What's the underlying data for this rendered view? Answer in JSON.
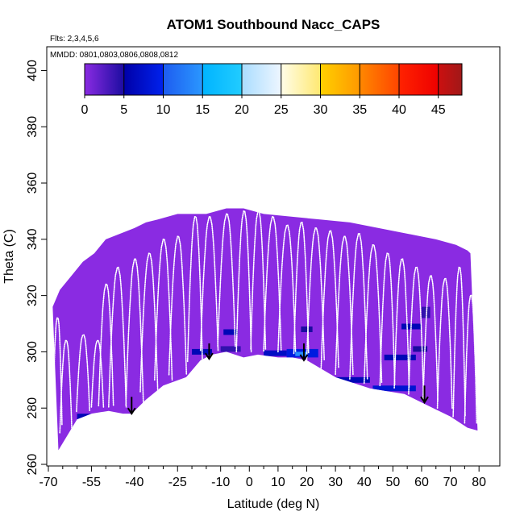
{
  "chart_data": {
    "type": "heatmap",
    "title": "ATOM1 Southbound Nacc_CAPS",
    "annotations": [
      "Flts: 2,3,4,5,6",
      "MMDD: 0801,0803,0806,0808,0812"
    ],
    "xlabel": "Latitude (deg N)",
    "ylabel": "Theta (C)",
    "xlim": [
      -70,
      85
    ],
    "ylim": [
      260,
      405
    ],
    "x_major_ticks": [
      -70,
      -55,
      -40,
      -25,
      -10,
      0,
      10,
      20,
      30,
      40,
      50,
      60,
      70,
      80
    ],
    "x_tick_labels": [
      "-70",
      "-55",
      "-40",
      "-25",
      "-10",
      "0",
      "10",
      "20",
      "30",
      "40",
      "50",
      "60",
      "70",
      "80"
    ],
    "x_minor_ticks": [
      -65,
      -60,
      -50,
      -45,
      -35,
      -30,
      -20,
      -15,
      -5,
      5,
      15,
      25,
      35,
      45,
      55,
      65,
      75
    ],
    "y_ticks": [
      260,
      280,
      300,
      320,
      340,
      360,
      380,
      400
    ],
    "y_tick_labels": [
      "260",
      "280",
      "300",
      "320",
      "340",
      "360",
      "380",
      "400"
    ],
    "colorbar": {
      "range": [
        0,
        48
      ],
      "tick_values": [
        0,
        5,
        10,
        15,
        20,
        25,
        30,
        35,
        40,
        45
      ],
      "tick_labels": [
        "0",
        "5",
        "10",
        "15",
        "20",
        "25",
        "30",
        "35",
        "40",
        "45"
      ],
      "segments": [
        {
          "from": 0,
          "to": 5,
          "c0": "#8a2be2",
          "c1": "#1b0ca0"
        },
        {
          "from": 5,
          "to": 10,
          "c0": "#0000a8",
          "c1": "#0022ee"
        },
        {
          "from": 10,
          "to": 15,
          "c0": "#1e5cf0",
          "c1": "#2a98ff"
        },
        {
          "from": 15,
          "to": 20,
          "c0": "#00b4ff",
          "c1": "#22ccff"
        },
        {
          "from": 20,
          "to": 25,
          "c0": "#aaddff",
          "c1": "#eef6ff"
        },
        {
          "from": 25,
          "to": 30,
          "c0": "#fffde8",
          "c1": "#ffe870"
        },
        {
          "from": 30,
          "to": 35,
          "c0": "#ffd000",
          "c1": "#ff9800"
        },
        {
          "from": 35,
          "to": 40,
          "c0": "#ff8800",
          "c1": "#ff4400"
        },
        {
          "from": 40,
          "to": 45,
          "c0": "#ff2200",
          "c1": "#ee0000"
        },
        {
          "from": 45,
          "to": 48,
          "c0": "#cc1010",
          "c1": "#a01818"
        }
      ]
    },
    "field_color": "#8a2be2",
    "profile_color": "#ffffff",
    "domain_top": [
      [
        -68.5,
        316
      ],
      [
        -66,
        322
      ],
      [
        -62,
        327
      ],
      [
        -58,
        332
      ],
      [
        -54,
        335
      ],
      [
        -50,
        340
      ],
      [
        -45,
        342
      ],
      [
        -40,
        344
      ],
      [
        -36,
        346
      ],
      [
        -32,
        347
      ],
      [
        -25,
        349
      ],
      [
        -15,
        349
      ],
      [
        -8,
        351
      ],
      [
        -2,
        351
      ],
      [
        5,
        349
      ],
      [
        15,
        348
      ],
      [
        25,
        347
      ],
      [
        35,
        346
      ],
      [
        45,
        344
      ],
      [
        55,
        342
      ],
      [
        60,
        341
      ],
      [
        65,
        340
      ],
      [
        72,
        338
      ],
      [
        76,
        336
      ],
      [
        77,
        335
      ]
    ],
    "domain_right_bottom": [
      79.5,
      272
    ],
    "lower_boundary": [
      [
        -66.5,
        265
      ],
      [
        -60,
        276
      ],
      [
        -55,
        278
      ],
      [
        -49,
        279
      ],
      [
        -44,
        278
      ],
      [
        -41,
        278
      ],
      [
        -36,
        283
      ],
      [
        -30,
        288
      ],
      [
        -22,
        291
      ],
      [
        -17,
        297
      ],
      [
        -13,
        299
      ],
      [
        -8,
        300
      ],
      [
        -2,
        298
      ],
      [
        3,
        299
      ],
      [
        10,
        298
      ],
      [
        15,
        298
      ],
      [
        20,
        297
      ],
      [
        25,
        294
      ],
      [
        30,
        291
      ],
      [
        36,
        289
      ],
      [
        42,
        287
      ],
      [
        48,
        286
      ],
      [
        54,
        285
      ],
      [
        58,
        283
      ],
      [
        64,
        280
      ],
      [
        70,
        277
      ],
      [
        76,
        273
      ],
      [
        79.5,
        272
      ]
    ],
    "enhanced_regions": [
      {
        "x": [
          -60,
          -50
        ],
        "y": [
          276,
          278
        ],
        "value": 6
      },
      {
        "x": [
          -20,
          -13
        ],
        "y": [
          299,
          301
        ],
        "value": 6
      },
      {
        "x": [
          -10,
          -3
        ],
        "y": [
          300,
          302
        ],
        "value": 4
      },
      {
        "x": [
          -9,
          -4
        ],
        "y": [
          306,
          308
        ],
        "value": 6
      },
      {
        "x": [
          5,
          13
        ],
        "y": [
          298.5,
          300.5
        ],
        "value": 7
      },
      {
        "x": [
          13,
          24
        ],
        "y": [
          298,
          301
        ],
        "value": 9
      },
      {
        "x": [
          16,
          20
        ],
        "y": [
          298.5,
          300
        ],
        "value": 14
      },
      {
        "x": [
          18,
          22
        ],
        "y": [
          307,
          309
        ],
        "value": 5
      },
      {
        "x": [
          30,
          42
        ],
        "y": [
          289,
          291
        ],
        "value": 6
      },
      {
        "x": [
          43,
          58
        ],
        "y": [
          286,
          288
        ],
        "value": 8
      },
      {
        "x": [
          47,
          58
        ],
        "y": [
          297,
          299
        ],
        "value": 6
      },
      {
        "x": [
          53,
          60
        ],
        "y": [
          308,
          310
        ],
        "value": 6
      },
      {
        "x": [
          57,
          62
        ],
        "y": [
          300,
          302
        ],
        "value": 5
      },
      {
        "x": [
          60,
          63
        ],
        "y": [
          312,
          316
        ],
        "value": 4
      }
    ],
    "arrows": [
      {
        "x": -41,
        "y_from": 284,
        "y_to": 278
      },
      {
        "x": -14,
        "y_from": 303,
        "y_to": 297.5
      },
      {
        "x": 19,
        "y_from": 303,
        "y_to": 297
      },
      {
        "x": 61,
        "y_from": 288,
        "y_to": 282
      }
    ],
    "profiles": [
      {
        "x": -67,
        "peak": 312,
        "w": 1.5
      },
      {
        "x": -64,
        "peak": 304,
        "w": 2.0
      },
      {
        "x": -58,
        "peak": 306,
        "w": 2.2
      },
      {
        "x": -53,
        "peak": 304,
        "w": 2.0
      },
      {
        "x": -50,
        "peak": 324,
        "w": 2.5
      },
      {
        "x": -46,
        "peak": 330,
        "w": 3.0
      },
      {
        "x": -40,
        "peak": 333,
        "w": 3.0
      },
      {
        "x": -35,
        "peak": 335,
        "w": 3.0
      },
      {
        "x": -30,
        "peak": 340,
        "w": 3.0
      },
      {
        "x": -25,
        "peak": 341,
        "w": 3.0
      },
      {
        "x": -19,
        "peak": 348,
        "w": 2.5
      },
      {
        "x": -14,
        "peak": 348,
        "w": 3.0
      },
      {
        "x": -8,
        "peak": 349,
        "w": 3.0
      },
      {
        "x": -2,
        "peak": 350,
        "w": 2.5
      },
      {
        "x": 3,
        "peak": 350,
        "w": 2.5
      },
      {
        "x": 8,
        "peak": 348,
        "w": 3.0
      },
      {
        "x": 13,
        "peak": 345,
        "w": 3.0
      },
      {
        "x": 18,
        "peak": 346,
        "w": 2.5
      },
      {
        "x": 23,
        "peak": 344,
        "w": 3.0
      },
      {
        "x": 28,
        "peak": 343,
        "w": 3.0
      },
      {
        "x": 33,
        "peak": 341,
        "w": 3.0
      },
      {
        "x": 38,
        "peak": 342,
        "w": 3.0
      },
      {
        "x": 43,
        "peak": 338,
        "w": 3.0
      },
      {
        "x": 48,
        "peak": 335,
        "w": 2.5
      },
      {
        "x": 53,
        "peak": 333,
        "w": 2.5
      },
      {
        "x": 58,
        "peak": 330,
        "w": 2.5
      },
      {
        "x": 63,
        "peak": 327,
        "w": 2.5
      },
      {
        "x": 68,
        "peak": 326,
        "w": 2.5
      },
      {
        "x": 73,
        "peak": 330,
        "w": 2.0
      },
      {
        "x": 77,
        "peak": 320,
        "w": 2.0
      }
    ]
  }
}
